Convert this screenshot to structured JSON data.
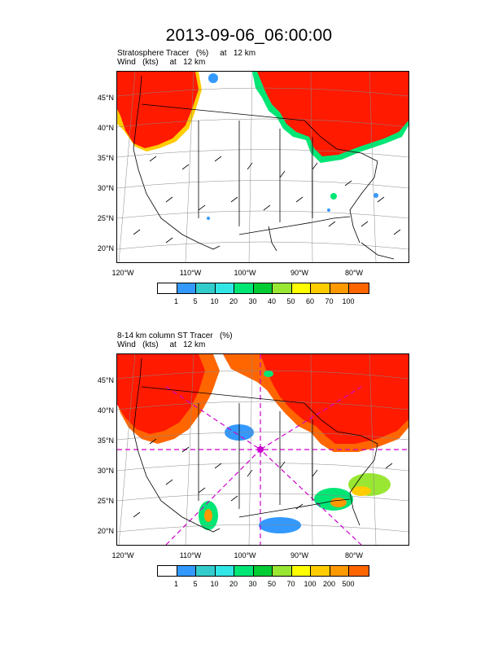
{
  "title": "2013-09-06_06:00:00",
  "panels": [
    {
      "label_line1": "Stratosphere Tracer   (%)     at   12 km",
      "label_line2": "Wind   (kts)     at   12 km",
      "lat_labels": [
        "45°N",
        "40°N",
        "35°N",
        "30°N",
        "25°N",
        "20°N"
      ],
      "lon_labels": [
        "120°W",
        "110°W",
        "100°W",
        "90°W",
        "80°W"
      ],
      "colorbar_labels": [
        "1",
        "5",
        "10",
        "20",
        "30",
        "40",
        "50",
        "60",
        "70",
        "100"
      ],
      "colorbar_colors": [
        "#ffffff",
        "#3399ff",
        "#33cccc",
        "#33e6e6",
        "#00e675",
        "#00cc33",
        "#99e633",
        "#ffff00",
        "#ffcc00",
        "#ff9900",
        "#ff6600",
        "#ff0000"
      ]
    },
    {
      "label_line1": "8-14 km column ST Tracer   (%)",
      "label_line2": "Wind   (kts)     at   12 km",
      "lat_labels": [
        "45°N",
        "40°N",
        "35°N",
        "30°N",
        "25°N",
        "20°N"
      ],
      "lon_labels": [
        "120°W",
        "110°W",
        "100°W",
        "90°W",
        "80°W"
      ],
      "colorbar_labels": [
        "1",
        "5",
        "10",
        "20",
        "30",
        "50",
        "70",
        "100",
        "200",
        "500"
      ],
      "colorbar_colors": [
        "#ffffff",
        "#3399ff",
        "#33cccc",
        "#33e6e6",
        "#00e675",
        "#00cc33",
        "#99e633",
        "#ffff00",
        "#ffcc00",
        "#ff9900",
        "#ff6600",
        "#ff0000"
      ]
    }
  ],
  "colors": {
    "tracer_high": "#ff1a00",
    "tracer_mid": "#ff6600",
    "tracer_low": "#ffcc00",
    "tracer_green": "#00e675",
    "tracer_blue": "#3399ff",
    "transect": "#cc00cc"
  }
}
